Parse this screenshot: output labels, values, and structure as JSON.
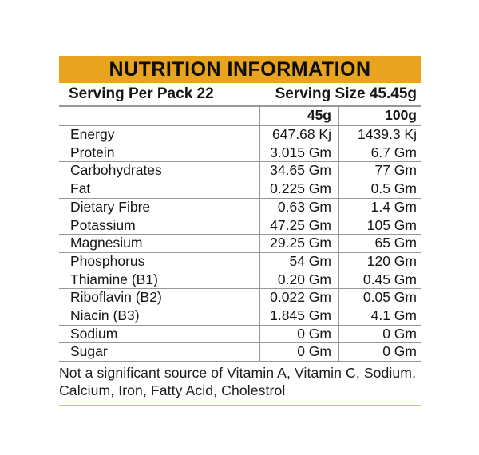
{
  "banner": {
    "title": "NUTRITION INFORMATION"
  },
  "serving": {
    "per_pack": "Serving Per Pack 22",
    "size": "Serving Size 45.45g"
  },
  "table": {
    "column_headers": [
      "45g",
      "100g"
    ],
    "rows": [
      {
        "label": "Energy",
        "v45": "647.68 Kj",
        "v100": "1439.3 Kj"
      },
      {
        "label": "Protein",
        "v45": "3.015 Gm",
        "v100": "6.7 Gm"
      },
      {
        "label": "Carbohydrates",
        "v45": "34.65 Gm",
        "v100": "77 Gm"
      },
      {
        "label": "Fat",
        "v45": "0.225 Gm",
        "v100": "0.5 Gm"
      },
      {
        "label": "Dietary Fibre",
        "v45": "0.63 Gm",
        "v100": "1.4 Gm"
      },
      {
        "label": "Potassium",
        "v45": "47.25 Gm",
        "v100": "105 Gm"
      },
      {
        "label": "Magnesium",
        "v45": "29.25 Gm",
        "v100": "65 Gm"
      },
      {
        "label": "Phosphorus",
        "v45": "54 Gm",
        "v100": "120 Gm"
      },
      {
        "label": "Thiamine (B1)",
        "v45": "0.20 Gm",
        "v100": "0.45 Gm"
      },
      {
        "label": "Riboflavin (B2)",
        "v45": "0.022 Gm",
        "v100": "0.05 Gm"
      },
      {
        "label": "Niacin (B3)",
        "v45": "1.845 Gm",
        "v100": "4.1 Gm"
      },
      {
        "label": "Sodium",
        "v45": "0 Gm",
        "v100": "0 Gm"
      },
      {
        "label": "Sugar",
        "v45": "0 Gm",
        "v100": "0 Gm"
      }
    ]
  },
  "footer": {
    "note": "Not a significant source of Vitamin A, Vitamin C, Sodium, Calcium, Iron, Fatty Acid, Cholestrol"
  },
  "colors": {
    "banner_bg": "#E8A31F",
    "grid_line": "#979797",
    "footer_line": "#D9BE7C",
    "text": "#161616"
  }
}
